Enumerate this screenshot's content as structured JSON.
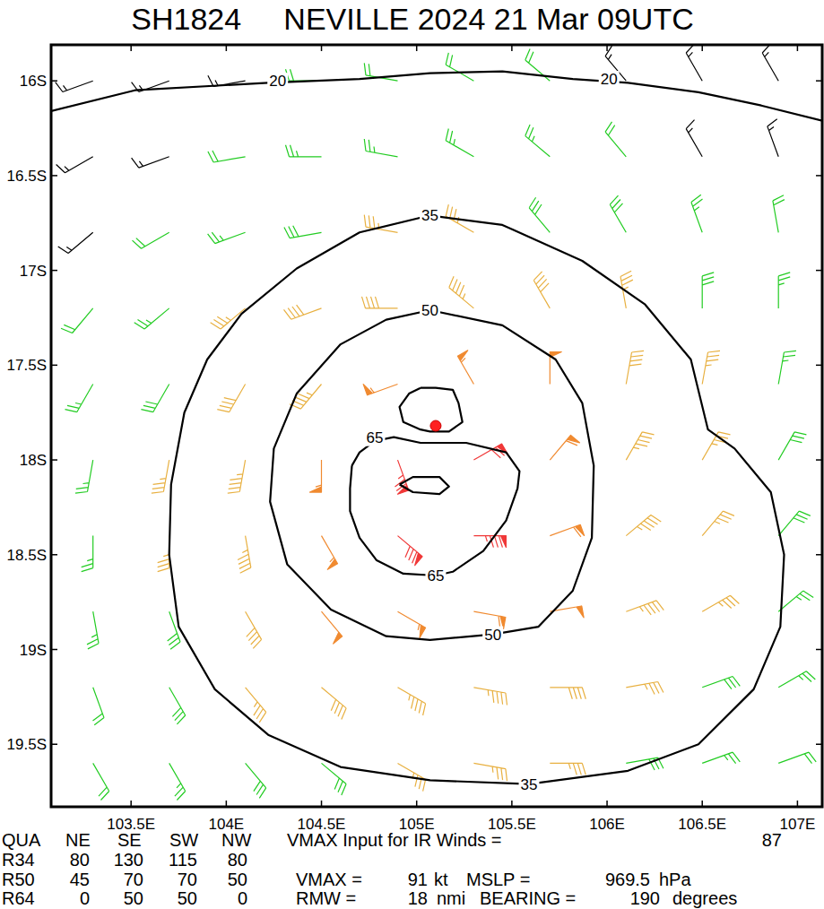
{
  "chart_data": {
    "type": "wind_field",
    "title": "SH1824     NEVILLE 2024 21 Mar 09UTC",
    "xlim": [
      103.08,
      107.13
    ],
    "ylim": [
      -19.83,
      -15.81
    ],
    "xticks": [
      {
        "value": 103.5,
        "label": "103.5E"
      },
      {
        "value": 104,
        "label": "104E"
      },
      {
        "value": 104.5,
        "label": "104.5E"
      },
      {
        "value": 105,
        "label": "105E"
      },
      {
        "value": 105.5,
        "label": "105.5E"
      },
      {
        "value": 106,
        "label": "106E"
      },
      {
        "value": 106.5,
        "label": "106.5E"
      },
      {
        "value": 107,
        "label": "107E"
      }
    ],
    "yticks": [
      {
        "value": -16,
        "label": "16S"
      },
      {
        "value": -16.5,
        "label": "16.5S"
      },
      {
        "value": -17,
        "label": "17S"
      },
      {
        "value": -17.5,
        "label": "17.5S"
      },
      {
        "value": -18,
        "label": "18S"
      },
      {
        "value": -18.5,
        "label": "18.5S"
      },
      {
        "value": -19,
        "label": "19S"
      },
      {
        "value": -19.5,
        "label": "19.5S"
      }
    ],
    "wind_field": {
      "lon": [
        103.3,
        103.7,
        104.1,
        104.5,
        104.9,
        105.3,
        105.7,
        106.1,
        106.5,
        106.9
      ],
      "lat": [
        -16.0,
        -16.4,
        -16.8,
        -17.2,
        -17.6,
        -18.0,
        -18.4,
        -18.8,
        -19.2,
        -19.6
      ],
      "speed": [
        [
          16,
          18,
          19,
          20,
          21,
          21,
          20,
          19,
          18,
          17
        ],
        [
          16,
          19,
          22,
          25,
          27,
          27,
          26,
          23,
          19,
          17
        ],
        [
          19,
          24,
          29,
          32,
          35,
          35,
          33,
          30,
          25,
          20
        ],
        [
          23,
          29,
          35,
          41,
          44,
          45,
          42,
          37,
          31,
          25
        ],
        [
          27,
          34,
          41,
          49,
          56,
          57,
          51,
          43,
          35,
          28
        ],
        [
          29,
          36,
          46,
          57,
          75,
          70,
          60,
          48,
          39,
          30
        ],
        [
          29,
          37,
          46,
          58,
          80,
          88,
          61,
          48,
          39,
          31
        ],
        [
          27,
          34,
          43,
          51,
          59,
          61,
          53,
          45,
          36,
          29
        ],
        [
          24,
          31,
          37,
          43,
          47,
          47,
          44,
          39,
          32,
          26
        ],
        [
          20,
          25,
          30,
          34,
          37,
          37,
          35,
          31,
          27,
          22
        ]
      ],
      "direction": [
        [
          250,
          250,
          260,
          270,
          280,
          300,
          310,
          320,
          330,
          330
        ],
        [
          240,
          250,
          260,
          270,
          280,
          300,
          310,
          320,
          330,
          340
        ],
        [
          230,
          240,
          250,
          260,
          280,
          300,
          320,
          330,
          340,
          350
        ],
        [
          220,
          230,
          230,
          250,
          270,
          310,
          330,
          350,
          0,
          0
        ],
        [
          210,
          210,
          210,
          220,
          250,
          330,
          0,
          10,
          10,
          10
        ],
        [
          190,
          190,
          190,
          180,
          160,
          60,
          40,
          30,
          30,
          30
        ],
        [
          180,
          180,
          170,
          150,
          130,
          90,
          70,
          50,
          40,
          40
        ],
        [
          170,
          160,
          150,
          140,
          120,
          100,
          80,
          70,
          60,
          50
        ],
        [
          160,
          150,
          140,
          130,
          120,
          100,
          90,
          80,
          70,
          60
        ],
        [
          150,
          150,
          140,
          130,
          120,
          100,
          90,
          80,
          70,
          70
        ]
      ],
      "band_bounds": [
        20,
        35,
        50,
        65
      ],
      "band_colors": [
        "#000000",
        "#22cc22",
        "#e8b040",
        "#f08a30",
        "#f03838"
      ]
    },
    "contours": [
      {
        "lon": [
          103.08,
          103.52,
          104.22,
          104.7,
          105.07,
          105.45,
          105.82,
          106.11,
          106.48,
          106.81,
          107.13
        ],
        "lat": [
          -16.16,
          -16.05,
          -16.01,
          -15.99,
          -15.96,
          -15.95,
          -15.99,
          -16.01,
          -16.06,
          -16.13,
          -16.21
        ],
        "labels": [
          {
            "text": "20",
            "lon": 104.27,
            "lat": -16.0
          },
          {
            "text": "20",
            "lon": 106.01,
            "lat": -15.99
          }
        ]
      },
      {
        "lon": [
          105.07,
          105.45,
          105.87,
          106.2,
          106.44,
          106.53,
          106.67,
          106.86,
          106.93,
          106.91,
          106.77,
          106.48,
          106.11,
          105.59,
          105.07,
          104.6,
          104.22,
          103.94,
          103.75,
          103.7,
          103.71,
          103.78,
          103.9,
          104.08,
          104.37,
          104.7,
          105.07
        ],
        "lat": [
          -16.71,
          -16.76,
          -16.95,
          -17.18,
          -17.47,
          -17.84,
          -17.94,
          -18.17,
          -18.5,
          -18.88,
          -19.21,
          -19.5,
          -19.64,
          -19.71,
          -19.69,
          -19.62,
          -19.45,
          -19.21,
          -18.88,
          -18.5,
          -18.13,
          -17.75,
          -17.47,
          -17.23,
          -16.99,
          -16.8,
          -16.71
        ],
        "labels": [
          {
            "text": "35",
            "lon": 105.07,
            "lat": -16.71
          },
          {
            "text": "35",
            "lon": 105.59,
            "lat": -19.71
          }
        ]
      },
      {
        "lon": [
          105.07,
          105.45,
          105.73,
          105.87,
          105.93,
          105.92,
          105.82,
          105.64,
          105.4,
          105.07,
          104.84,
          104.55,
          104.32,
          104.23,
          104.25,
          104.37,
          104.6,
          104.84,
          105.07
        ],
        "lat": [
          -17.21,
          -17.29,
          -17.47,
          -17.7,
          -18.03,
          -18.41,
          -18.69,
          -18.88,
          -18.92,
          -18.95,
          -18.93,
          -18.79,
          -18.55,
          -18.22,
          -17.94,
          -17.65,
          -17.39,
          -17.26,
          -17.21
        ],
        "labels": [
          {
            "text": "50",
            "lon": 105.07,
            "lat": -17.21
          },
          {
            "text": "50",
            "lon": 105.4,
            "lat": -18.92
          }
        ]
      },
      {
        "lon": [
          104.66,
          104.7,
          104.78,
          104.88,
          105.02,
          105.26,
          105.47,
          105.54,
          105.53,
          105.47,
          105.35,
          105.19,
          105.1,
          104.93,
          104.79,
          104.7,
          104.65,
          104.65,
          104.66
        ],
        "lat": [
          -18.03,
          -17.96,
          -17.9,
          -17.88,
          -17.91,
          -17.91,
          -17.96,
          -18.06,
          -18.15,
          -18.32,
          -18.48,
          -18.59,
          -18.61,
          -18.6,
          -18.53,
          -18.41,
          -18.27,
          -18.15,
          -18.03
        ],
        "labels": [
          {
            "text": "65",
            "lon": 104.78,
            "lat": -17.88
          },
          {
            "text": "65",
            "lon": 105.1,
            "lat": -18.61
          }
        ]
      },
      {
        "lon": [
          105.02,
          105.1,
          105.19,
          105.22,
          105.24,
          105.17,
          105.07,
          105.02,
          104.93,
          104.91,
          104.96,
          105.02
        ],
        "lat": [
          -17.62,
          -17.62,
          -17.63,
          -17.7,
          -17.8,
          -17.85,
          -17.85,
          -17.84,
          -17.8,
          -17.72,
          -17.65,
          -17.62
        ],
        "labels": []
      },
      {
        "lon": [
          104.91,
          104.98,
          105.12,
          105.17,
          105.12,
          104.98,
          104.91
        ],
        "lat": [
          -18.13,
          -18.09,
          -18.09,
          -18.14,
          -18.18,
          -18.17,
          -18.13
        ],
        "labels": []
      }
    ],
    "center": {
      "lon": 105.1,
      "lat": -17.82
    },
    "radii": {
      "header": [
        "QUA",
        "NE",
        "SE",
        "SW",
        "NW"
      ],
      "rows": [
        {
          "label": "R34",
          "values": [
            80,
            130,
            115,
            80
          ]
        },
        {
          "label": "R50",
          "values": [
            45,
            70,
            70,
            50
          ]
        },
        {
          "label": "R64",
          "values": [
            0,
            50,
            50,
            0
          ]
        }
      ]
    },
    "info": [
      {
        "label": "VMAX Input for IR Winds =",
        "value": 87
      },
      {
        "label": "VMAX =",
        "value": 91,
        "unit": "kt"
      },
      {
        "label": "MSLP =",
        "value": 969.5,
        "unit": "hPa"
      },
      {
        "label": "RMW =",
        "value": 18,
        "unit": "nmi"
      },
      {
        "label": "BEARING =",
        "value": 190,
        "unit": "degrees"
      }
    ]
  }
}
